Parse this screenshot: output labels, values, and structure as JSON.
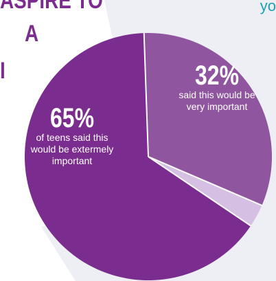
{
  "headline": {
    "line1": "ASPIRE TO",
    "line2": "A",
    "line3": "I"
  },
  "corner_text": "yo",
  "colors": {
    "primary": "#7b2c8f",
    "secondary": "#8f559f",
    "tertiary": "#d5bfe2",
    "text_on_slice": "#ffffff",
    "background_shape": "#eeeff4",
    "headline": "#7b2c8f",
    "corner_text": "#1d9fb8"
  },
  "chart_data": {
    "type": "pie",
    "slices": [
      {
        "label": "extremely important",
        "value": 65,
        "color": "#7b2c8f",
        "pct_text": "65%",
        "desc": "of teens said this would be extermely important"
      },
      {
        "label": "very important",
        "value": 32,
        "color": "#8f559f",
        "pct_text": "32%",
        "desc": "said this would be very important"
      },
      {
        "label": "",
        "value": 3,
        "color": "#d5bfe2"
      }
    ]
  }
}
